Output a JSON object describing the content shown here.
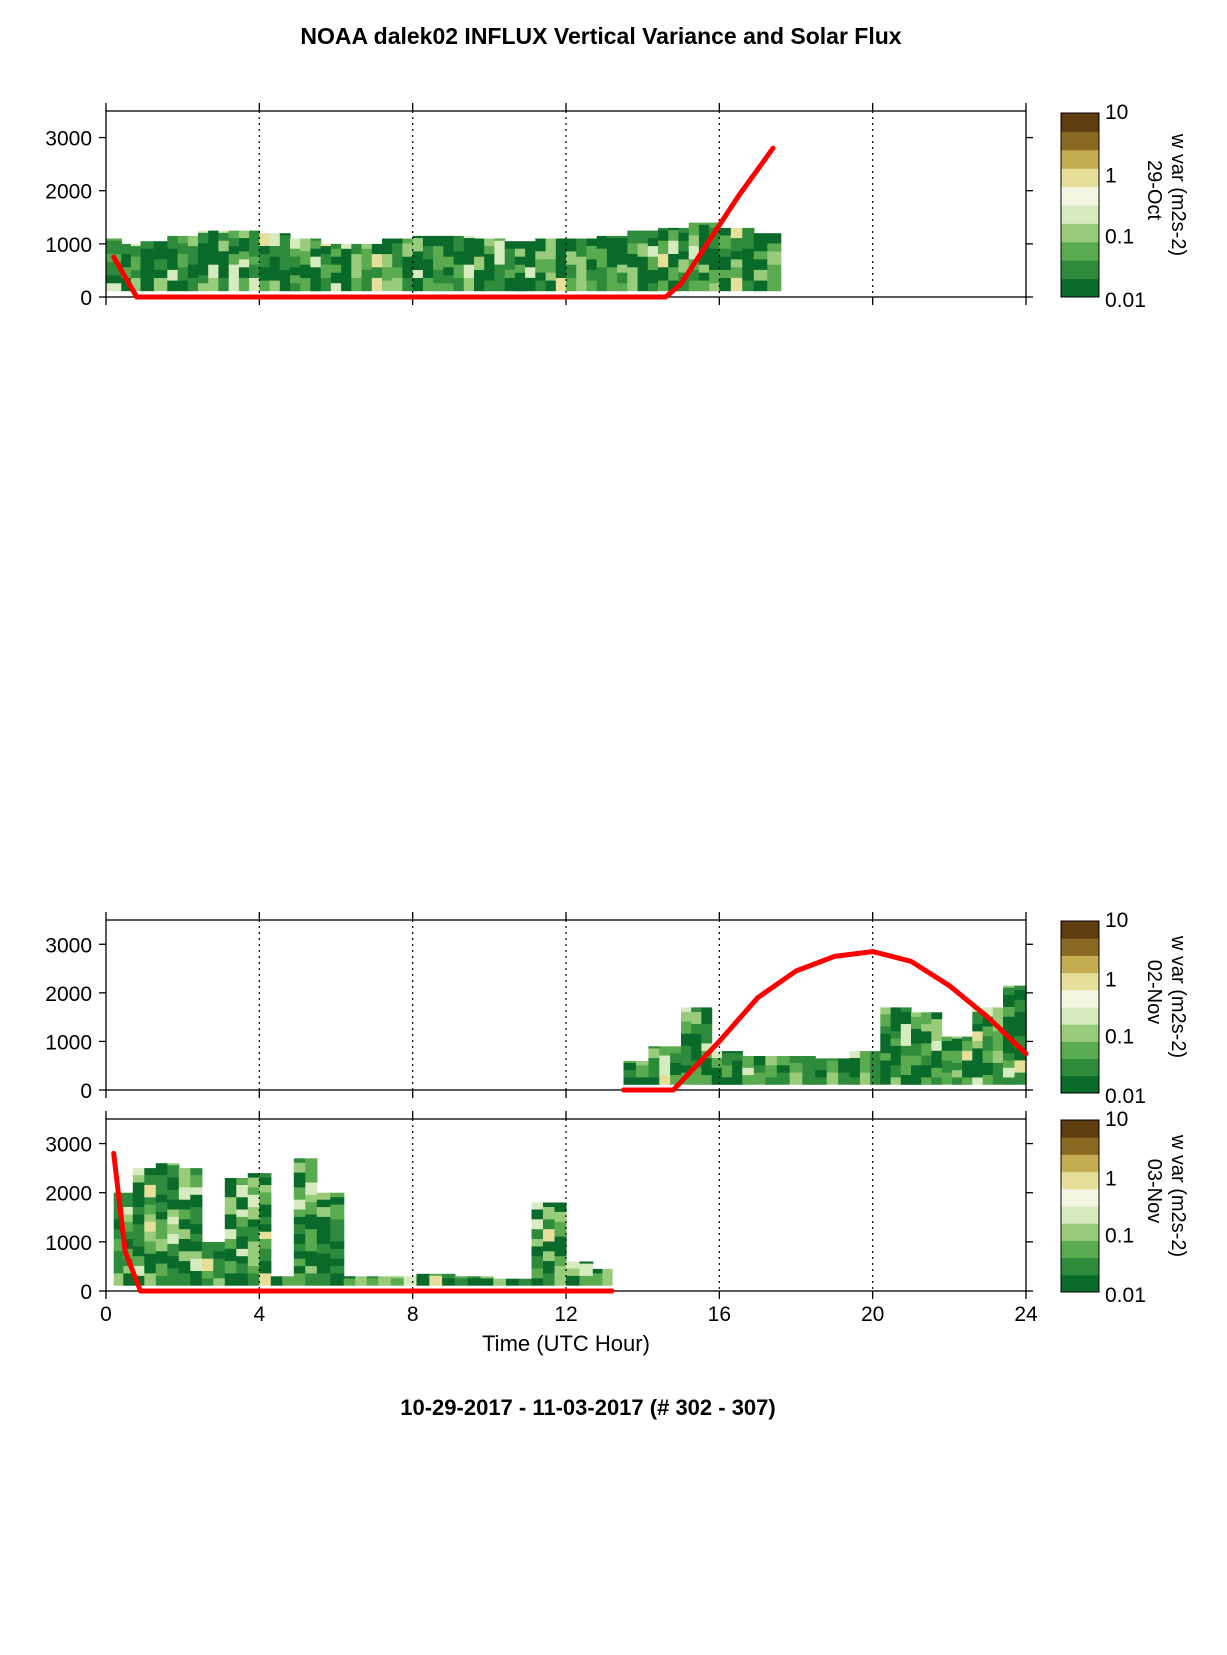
{
  "title": "NOAA dalek02 INFLUX Vertical Variance and Solar Flux",
  "footer": "10-29-2017 - 11-03-2017   (# 302 - 307)",
  "colors": {
    "solar_line": "#ff0000",
    "colormap": [
      "#0a6a2a",
      "#2e8b3c",
      "#5aaa50",
      "#98cc7a",
      "#d6ecc0",
      "#f4f6e4",
      "#e6df9a",
      "#c4ac52",
      "#8a6a22",
      "#5e3e10"
    ]
  },
  "chart_data": [
    {
      "type": "heatmap",
      "label": "29-Oct",
      "xlabel": "",
      "ylabel": "",
      "xlim": [
        0,
        24
      ],
      "ylim": [
        0,
        3500
      ],
      "x_ticks": [
        "0",
        "4",
        "8",
        "12",
        "16",
        "20",
        "24"
      ],
      "y_ticks": [
        "0",
        "1000",
        "2000",
        "3000"
      ],
      "grid": "vertical dotted at 4-hour ticks",
      "colorbar": {
        "label": "w var (m2s-2)",
        "scale": "log",
        "ticks": [
          "0.01",
          "0.1",
          "1",
          "10"
        ],
        "range": [
          0.01,
          10
        ]
      },
      "coverage": [
        {
          "x": 0.2,
          "top": 1100
        },
        {
          "x": 0.6,
          "top": 1000
        },
        {
          "x": 1.2,
          "top": 1050
        },
        {
          "x": 2.0,
          "top": 1150
        },
        {
          "x": 2.8,
          "top": 1250
        },
        {
          "x": 3.6,
          "top": 1250
        },
        {
          "x": 4.4,
          "top": 1200
        },
        {
          "x": 5.2,
          "top": 1100
        },
        {
          "x": 6.0,
          "top": 1000
        },
        {
          "x": 6.8,
          "top": 1000
        },
        {
          "x": 7.6,
          "top": 1100
        },
        {
          "x": 8.4,
          "top": 1150
        },
        {
          "x": 9.2,
          "top": 1150
        },
        {
          "x": 10.0,
          "top": 1100
        },
        {
          "x": 10.8,
          "top": 1050
        },
        {
          "x": 11.6,
          "top": 1100
        },
        {
          "x": 12.4,
          "top": 1100
        },
        {
          "x": 13.2,
          "top": 1150
        },
        {
          "x": 14.0,
          "top": 1250
        },
        {
          "x": 14.8,
          "top": 1300
        },
        {
          "x": 15.6,
          "top": 1400
        },
        {
          "x": 16.4,
          "top": 1300
        },
        {
          "x": 17.4,
          "top": 1200
        }
      ],
      "solar_flux": {
        "x": [
          0.2,
          0.8,
          14.6,
          15.0,
          15.5,
          16.0,
          16.5,
          17.0,
          17.4
        ],
        "y": [
          750,
          0,
          0,
          250,
          800,
          1350,
          1900,
          2400,
          2800
        ]
      }
    },
    {
      "type": "heatmap",
      "label": "02-Nov",
      "xlabel": "",
      "ylabel": "",
      "xlim": [
        0,
        24
      ],
      "ylim": [
        0,
        3500
      ],
      "x_ticks": [
        "0",
        "4",
        "8",
        "12",
        "16",
        "20",
        "24"
      ],
      "y_ticks": [
        "0",
        "1000",
        "2000",
        "3000"
      ],
      "grid": "vertical dotted at 4-hour ticks",
      "colorbar": {
        "label": "w var (m2s-2)",
        "scale": "log",
        "ticks": [
          "0.01",
          "0.1",
          "1",
          "10"
        ],
        "range": [
          0.01,
          10
        ]
      },
      "coverage": [
        {
          "x": 13.7,
          "top": 600
        },
        {
          "x": 14.6,
          "top": 900
        },
        {
          "x": 15.4,
          "top": 1700
        },
        {
          "x": 16.2,
          "top": 800
        },
        {
          "x": 17.0,
          "top": 700
        },
        {
          "x": 18.0,
          "top": 700
        },
        {
          "x": 19.0,
          "top": 650
        },
        {
          "x": 19.8,
          "top": 800
        },
        {
          "x": 20.6,
          "top": 1700
        },
        {
          "x": 21.4,
          "top": 1600
        },
        {
          "x": 22.2,
          "top": 1100
        },
        {
          "x": 23.0,
          "top": 1700
        },
        {
          "x": 23.8,
          "top": 2150
        }
      ],
      "solar_flux": {
        "x": [
          13.5,
          14.8,
          16.0,
          17.0,
          18.0,
          19.0,
          20.0,
          21.0,
          22.0,
          23.0,
          24.0
        ],
        "y": [
          0,
          0,
          1000,
          1900,
          2450,
          2750,
          2850,
          2650,
          2150,
          1500,
          750
        ]
      }
    },
    {
      "type": "heatmap",
      "label": "03-Nov",
      "xlabel": "Time (UTC Hour)",
      "ylabel": "",
      "xlim": [
        0,
        24
      ],
      "ylim": [
        0,
        3500
      ],
      "x_ticks": [
        "0",
        "4",
        "8",
        "12",
        "16",
        "20",
        "24"
      ],
      "y_ticks": [
        "0",
        "1000",
        "2000",
        "3000"
      ],
      "grid": "vertical dotted at 4-hour ticks",
      "colorbar": {
        "label": "w var (m2s-2)",
        "scale": "log",
        "ticks": [
          "0.01",
          "0.1",
          "1",
          "10"
        ],
        "range": [
          0.01,
          10
        ]
      },
      "coverage": [
        {
          "x": 0.4,
          "top": 2000
        },
        {
          "x": 1.0,
          "top": 2500
        },
        {
          "x": 1.6,
          "top": 2600
        },
        {
          "x": 2.2,
          "top": 2500
        },
        {
          "x": 2.8,
          "top": 1000
        },
        {
          "x": 3.4,
          "top": 2300
        },
        {
          "x": 4.0,
          "top": 2400
        },
        {
          "x": 4.6,
          "top": 300
        },
        {
          "x": 5.2,
          "top": 2700
        },
        {
          "x": 5.8,
          "top": 2000
        },
        {
          "x": 6.6,
          "top": 300
        },
        {
          "x": 7.6,
          "top": 300
        },
        {
          "x": 8.6,
          "top": 350
        },
        {
          "x": 9.6,
          "top": 300
        },
        {
          "x": 10.6,
          "top": 250
        },
        {
          "x": 11.6,
          "top": 1800
        },
        {
          "x": 12.4,
          "top": 600
        },
        {
          "x": 13.0,
          "top": 450
        }
      ],
      "solar_flux": {
        "x": [
          0.2,
          0.5,
          0.9,
          13.2
        ],
        "y": [
          2800,
          800,
          0,
          0
        ]
      }
    }
  ]
}
